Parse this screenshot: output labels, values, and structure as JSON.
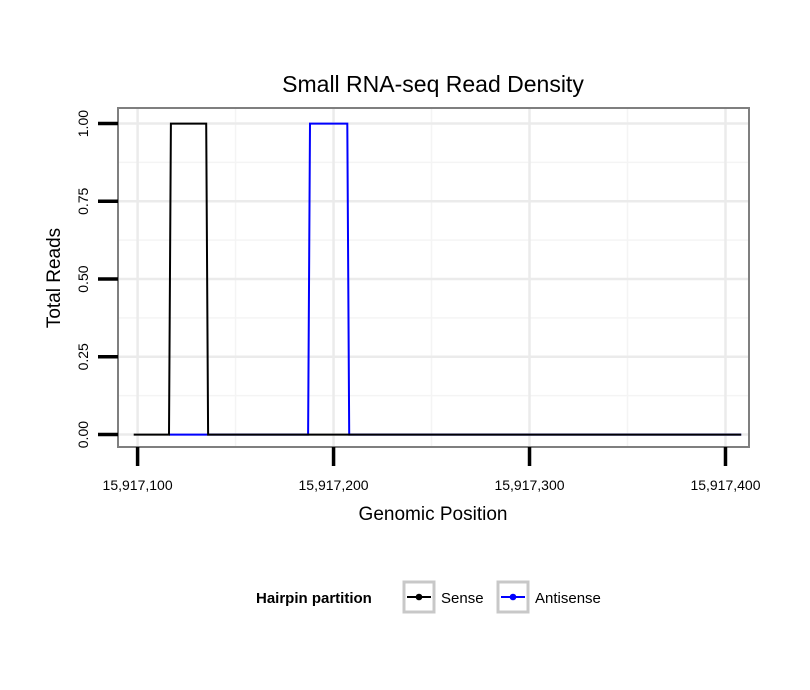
{
  "chart_data": {
    "type": "line",
    "title": "Small RNA-seq Read Density",
    "xlabel": "Genomic Position",
    "ylabel": "Total Reads",
    "xlim": [
      15917090,
      15917412
    ],
    "ylim": [
      -0.04,
      1.05
    ],
    "x_ticks": [
      15917100,
      15917200,
      15917300,
      15917400
    ],
    "x_tick_labels": [
      "15,917,100",
      "15,917,200",
      "15,917,300",
      "15,917,400"
    ],
    "y_ticks": [
      0,
      0.25,
      0.5,
      0.75,
      1.0
    ],
    "y_tick_labels": [
      "0.00",
      "0.25",
      "0.50",
      "0.75",
      "1.00"
    ],
    "grid": true,
    "legend": {
      "title": "Hairpin partition",
      "position": "bottom",
      "entries": [
        "Sense",
        "Antisense"
      ]
    },
    "series": [
      {
        "name": "Sense",
        "color": "#000000",
        "x": [
          15917098,
          15917116,
          15917117,
          15917135,
          15917136,
          15917408
        ],
        "y": [
          0,
          0,
          1,
          1,
          0,
          0
        ]
      },
      {
        "name": "Antisense",
        "color": "#0000ff",
        "x": [
          15917116,
          15917187,
          15917188,
          15917207,
          15917208,
          15917408
        ],
        "y": [
          0,
          0,
          1,
          1,
          0,
          0
        ]
      }
    ]
  }
}
